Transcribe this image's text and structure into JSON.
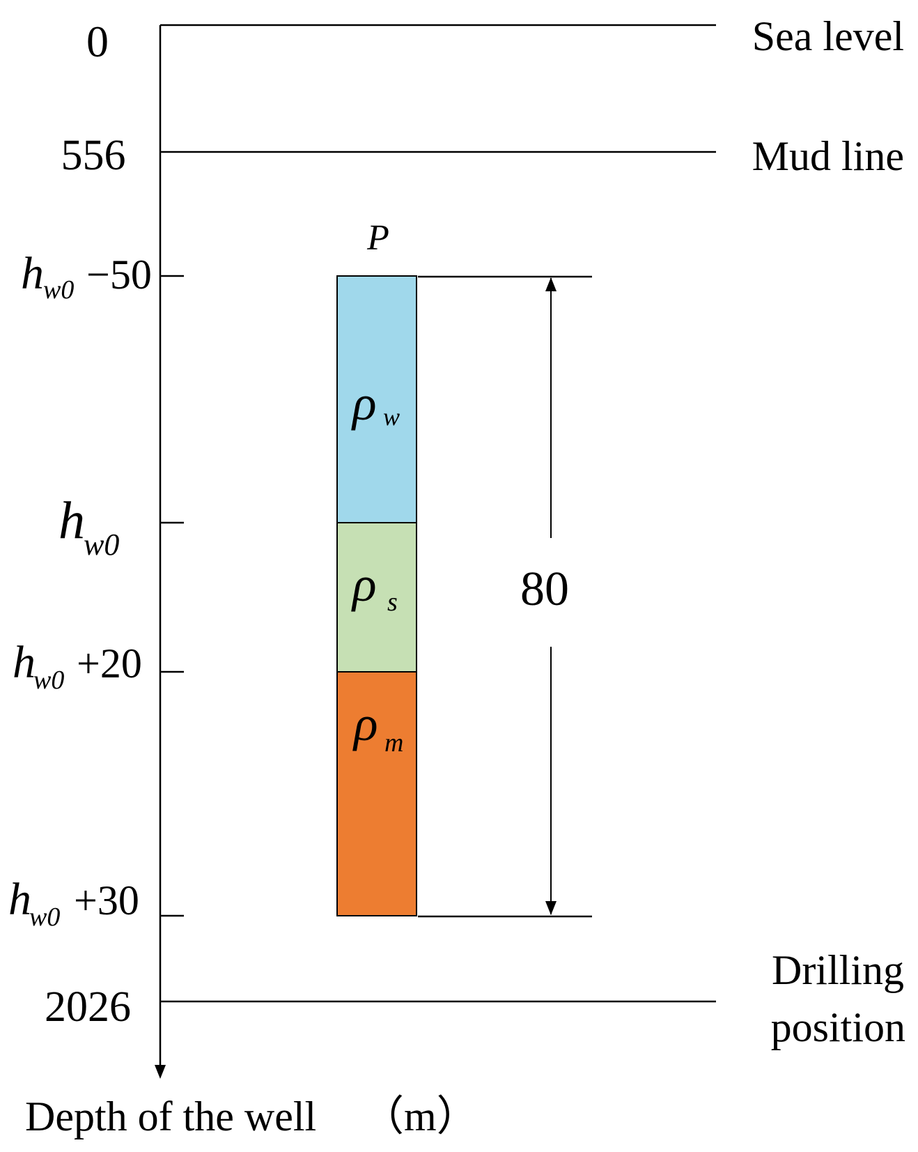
{
  "axis": {
    "title": "Depth of the well",
    "unit": "（m）"
  },
  "levels": {
    "sea_level": {
      "depth": "0",
      "label": "Sea level"
    },
    "mud_line": {
      "depth": "556",
      "label": "Mud line"
    },
    "drilling_position": {
      "depth": "2026",
      "label_line1": "Drilling",
      "label_line2": "position"
    }
  },
  "interval_ticks": {
    "top": {
      "symbol": "h",
      "subscript": "w0",
      "offset": "−50"
    },
    "middle": {
      "symbol": "h",
      "subscript": "w0",
      "offset": ""
    },
    "upper_mid": {
      "symbol": "h",
      "subscript": "w0",
      "offset": "+20"
    },
    "bottom": {
      "symbol": "h",
      "subscript": "w0",
      "offset": "+30"
    }
  },
  "column": {
    "pressure_label": "P",
    "layers": [
      {
        "symbol": "ρ",
        "subscript": "w",
        "color": "#a0d8eb"
      },
      {
        "symbol": "ρ",
        "subscript": "s",
        "color": "#c6e0b4"
      },
      {
        "symbol": "ρ",
        "subscript": "m",
        "color": "#ed7d31"
      }
    ]
  },
  "dimension": {
    "value": "80"
  },
  "colors": {
    "line": "#000000",
    "background": "#ffffff"
  }
}
